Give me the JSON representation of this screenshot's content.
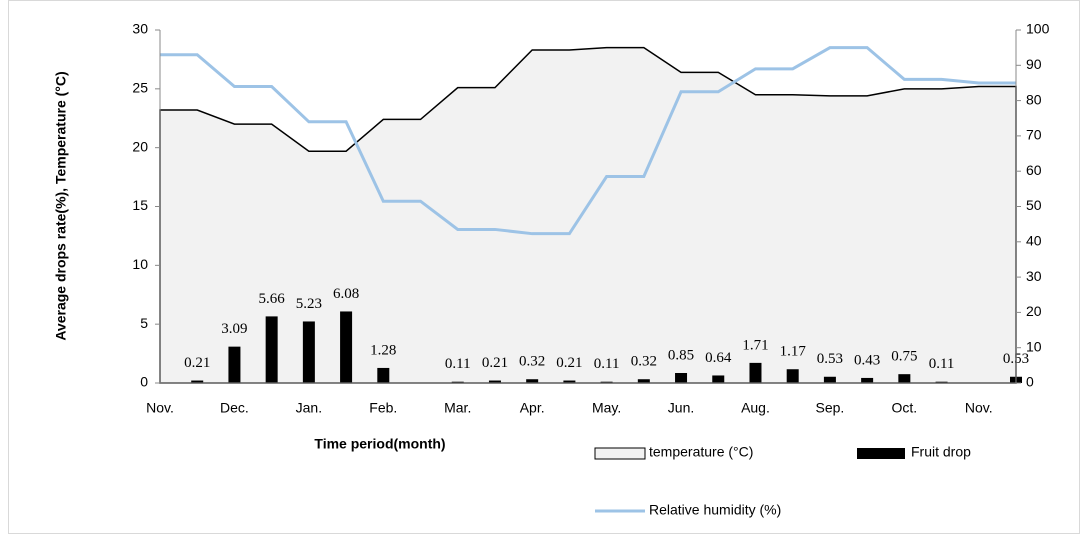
{
  "chart_data": {
    "type": "combo",
    "xlabel": "Time period(month)",
    "ylabel": "Average drops rate(%), Temperature (°C)",
    "categories": [
      "Nov.",
      null,
      "Dec.",
      null,
      "Jan.",
      null,
      "Feb.",
      null,
      "Mar.",
      null,
      "Apr.",
      null,
      "May.",
      null,
      "Jun.",
      null,
      "Aug.",
      null,
      "Sep.",
      null,
      "Oct.",
      null,
      "Nov.",
      null
    ],
    "series": [
      {
        "name": "temperature (°C)",
        "type": "area",
        "color": "#f2f2f2",
        "axis": "y",
        "values": [
          23.2,
          23.2,
          22.0,
          22.0,
          19.7,
          19.7,
          22.4,
          22.4,
          25.1,
          25.1,
          28.3,
          28.3,
          28.5,
          28.5,
          26.4,
          26.4,
          24.5,
          24.5,
          24.4,
          24.4,
          25.0,
          25.0,
          25.2,
          25.2
        ]
      },
      {
        "name": "Fruit drop",
        "type": "bar",
        "color": "#000000",
        "axis": "y",
        "values": [
          null,
          0.21,
          3.09,
          5.66,
          5.23,
          6.08,
          1.28,
          null,
          0.11,
          0.21,
          0.32,
          0.21,
          0.11,
          0.32,
          0.85,
          0.64,
          1.71,
          1.17,
          0.53,
          0.43,
          0.75,
          0.11,
          null,
          0.53
        ]
      },
      {
        "name": "Relative humidity (%)",
        "type": "line",
        "color": "#9dc3e6",
        "axis": "y2",
        "values": [
          93,
          93,
          84,
          84,
          74,
          74,
          51.5,
          51.5,
          43.5,
          43.5,
          42.3,
          42.3,
          58.5,
          58.5,
          82.5,
          82.5,
          89,
          89,
          95,
          95,
          86,
          86,
          85,
          85
        ]
      }
    ],
    "ylim": [
      0,
      30
    ],
    "yticks": [
      0,
      5,
      10,
      15,
      20,
      25,
      30
    ],
    "y2lim": [
      0,
      100
    ],
    "y2ticks": [
      0,
      10,
      20,
      30,
      40,
      50,
      60,
      70,
      80,
      90,
      100
    ]
  }
}
